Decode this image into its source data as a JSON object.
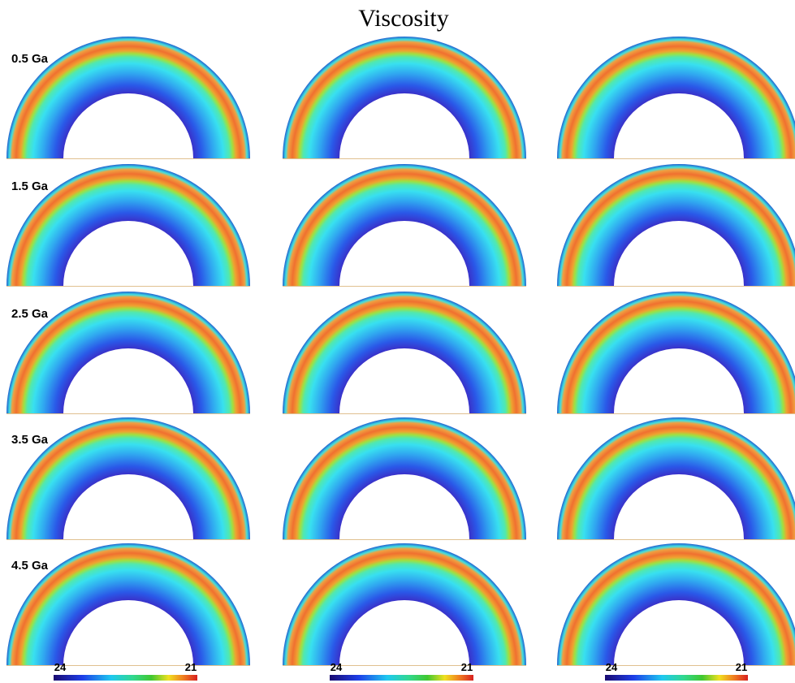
{
  "title": "Viscosity",
  "rows": [
    "0.5 Ga",
    "1.5 Ga",
    "2.5 Ga",
    "3.5 Ga",
    "4.5 Ga"
  ],
  "colorbars": [
    {
      "left_label": "24",
      "right_label": "21"
    },
    {
      "left_label": "24",
      "right_label": "21"
    },
    {
      "left_label": "24",
      "right_label": "21"
    }
  ]
}
